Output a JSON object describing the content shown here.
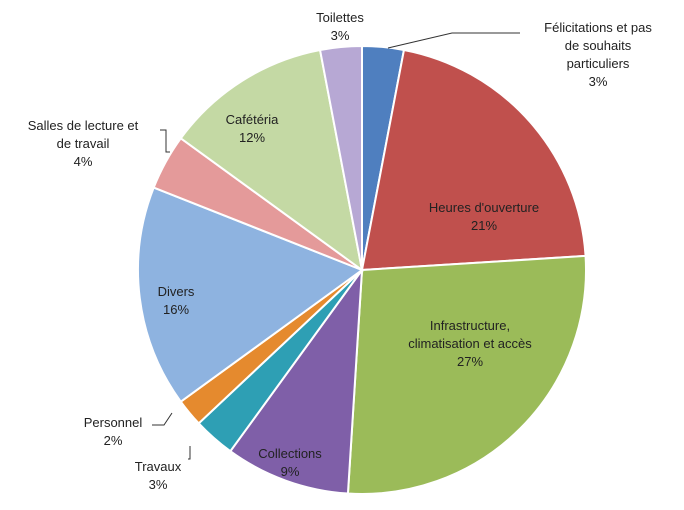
{
  "chart_data": {
    "type": "pie",
    "title": "",
    "slices": [
      {
        "label": "Félicitations et pas de souhaits particuliers",
        "value": 3,
        "value_text": "3%",
        "color": "#4F7FBF"
      },
      {
        "label": "Heures d'ouverture",
        "value": 21,
        "value_text": "21%",
        "color": "#C0504D"
      },
      {
        "label": "Infrastructure, climatisation et accès",
        "value": 27,
        "value_text": "27%",
        "color": "#9BBB59"
      },
      {
        "label": "Collections",
        "value": 9,
        "value_text": "9%",
        "color": "#7F5FA8"
      },
      {
        "label": "Travaux",
        "value": 3,
        "value_text": "3%",
        "color": "#2E9FB4"
      },
      {
        "label": "Personnel",
        "value": 2,
        "value_text": "2%",
        "color": "#E58A2E"
      },
      {
        "label": "Divers",
        "value": 16,
        "value_text": "16%",
        "color": "#8EB3E0"
      },
      {
        "label": "Salles de lecture et de travail",
        "value": 4,
        "value_text": "4%",
        "color": "#E49A9A"
      },
      {
        "label": "Cafétéria",
        "value": 12,
        "value_text": "12%",
        "color": "#C4D9A4"
      },
      {
        "label": "Toilettes",
        "value": 3,
        "value_text": "3%",
        "color": "#B7A8D4"
      }
    ]
  }
}
